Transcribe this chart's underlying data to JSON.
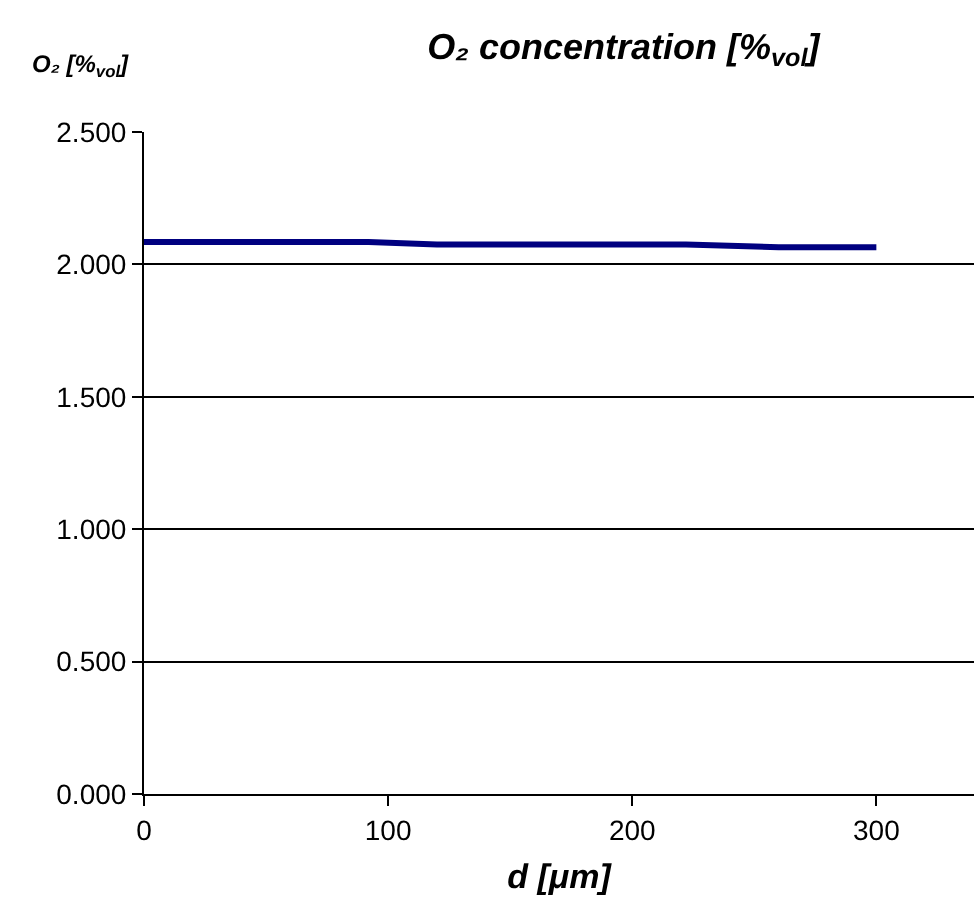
{
  "chart_data": {
    "type": "line",
    "title": "O₂ concentration [%$_{vol}$]",
    "ylabel": "O₂ [%$_{vol}$]",
    "xlabel": "d [μm]",
    "x": [
      0,
      50,
      92,
      120,
      150,
      222,
      260,
      300
    ],
    "series": [
      {
        "color": "#000080",
        "values": [
          2.085,
          2.085,
          2.085,
          2.075,
          2.075,
          2.075,
          2.065,
          2.065
        ]
      }
    ],
    "xlim": [
      0,
      340
    ],
    "xticks": [
      0,
      100,
      200,
      300
    ],
    "ylim": [
      0,
      2.5
    ],
    "yticks": [
      {
        "value": 0,
        "label": "0.000"
      },
      {
        "value": 0.5,
        "label": "0.500"
      },
      {
        "value": 1,
        "label": "1.000"
      },
      {
        "value": 1.5,
        "label": "1.500"
      },
      {
        "value": 2,
        "label": "2.000"
      },
      {
        "value": 2.5,
        "label": "2.500"
      }
    ],
    "grid": "y",
    "marker": "none",
    "line_style": "solid"
  }
}
